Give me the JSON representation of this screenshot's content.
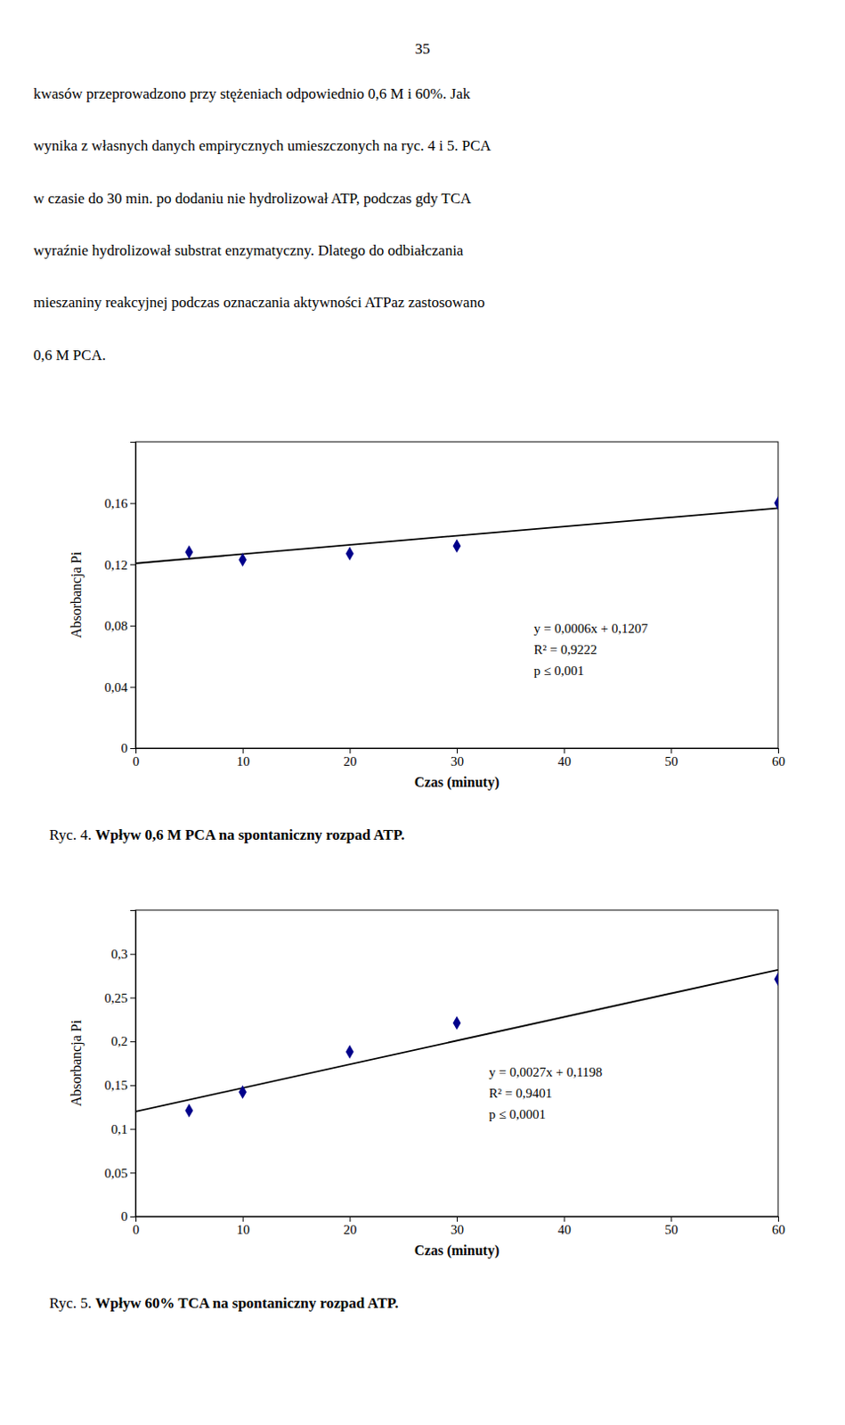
{
  "page_number": "35",
  "paragraph": [
    "kwasów przeprowadzono przy stężeniach odpowiednio 0,6 M i 60%. Jak",
    "wynika z własnych danych empirycznych umieszczonych na ryc. 4 i 5. PCA",
    "w czasie do 30 min. po dodaniu nie hydrolizował ATP, podczas gdy TCA",
    "wyraźnie hydrolizował substrat enzymatyczny. Dlatego do odbiałczania",
    "mieszaniny reakcyjnej podczas oznaczania aktywności ATPaz zastosowano",
    "0,6 M PCA."
  ],
  "chart_data": [
    {
      "type": "scatter",
      "xlabel": "Czas (minuty)",
      "ylabel": "Absorbancja Pi",
      "xlim": [
        0,
        60
      ],
      "ylim": [
        0,
        0.2
      ],
      "xticks": [
        0,
        10,
        20,
        30,
        40,
        50,
        60
      ],
      "yticks": [
        0,
        {
          "value": 0.04,
          "label": "0,04"
        },
        {
          "value": 0.08,
          "label": "0,08"
        },
        {
          "value": 0.12,
          "label": "0,12"
        },
        {
          "value": 0.16,
          "label": "0,16"
        }
      ],
      "grid": false,
      "series": [
        {
          "type": "scatter",
          "marker": "diamond",
          "color": "#00008B",
          "x": [
            5,
            10,
            20,
            30,
            60
          ],
          "values": [
            0.128,
            0.123,
            0.127,
            0.132,
            0.16
          ]
        },
        {
          "type": "line",
          "line_style": "solid",
          "color": "#000000",
          "x": [
            0,
            60
          ],
          "values": [
            0.1207,
            0.1567
          ]
        }
      ],
      "annotations": [
        "y = 0,0006x + 0,1207",
        "R² = 0,9222",
        "p ≤ 0,001"
      ],
      "caption_label": "Ryc. 4. ",
      "caption": "Wpływ 0,6 M PCA na spontaniczny rozpad ATP."
    },
    {
      "type": "scatter",
      "xlabel": "Czas (minuty)",
      "ylabel": "Absorbancja Pi",
      "xlim": [
        0,
        60
      ],
      "ylim": [
        0,
        0.35
      ],
      "xticks": [
        0,
        10,
        20,
        30,
        40,
        50,
        60
      ],
      "yticks": [
        0,
        {
          "value": 0.05,
          "label": "0,05"
        },
        {
          "value": 0.1,
          "label": "0,1"
        },
        {
          "value": 0.15,
          "label": "0,15"
        },
        {
          "value": 0.2,
          "label": "0,2"
        },
        {
          "value": 0.25,
          "label": "0,25"
        },
        {
          "value": 0.3,
          "label": "0,3"
        }
      ],
      "grid": false,
      "series": [
        {
          "type": "scatter",
          "marker": "diamond",
          "color": "#00008B",
          "x": [
            5,
            10,
            20,
            30,
            60
          ],
          "values": [
            0.121,
            0.142,
            0.188,
            0.221,
            0.271
          ]
        },
        {
          "type": "line",
          "line_style": "solid",
          "color": "#000000",
          "x": [
            0,
            60
          ],
          "values": [
            0.1198,
            0.2818
          ]
        }
      ],
      "annotations": [
        "y = 0,0027x + 0,1198",
        "R² = 0,9401",
        "p ≤ 0,0001"
      ],
      "caption_label": "Ryc. 5. ",
      "caption": "Wpływ 60% TCA na spontaniczny rozpad ATP."
    }
  ]
}
